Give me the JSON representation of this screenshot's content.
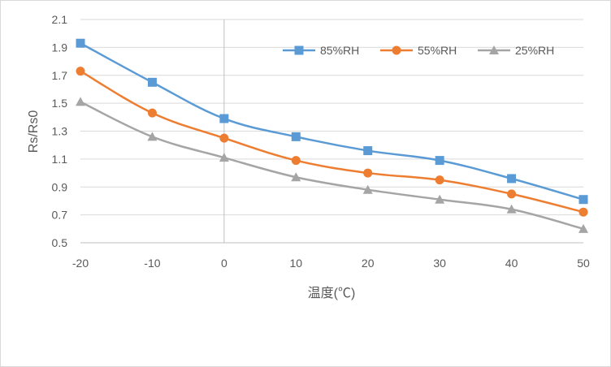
{
  "chart_data": {
    "type": "line",
    "title": "",
    "xlabel": "温度(℃)",
    "ylabel": "Rs/Rs0",
    "x": [
      -20,
      -10,
      0,
      10,
      20,
      30,
      40,
      50
    ],
    "x_ticks": [
      "-20",
      "-10",
      "0",
      "10",
      "20",
      "30",
      "40",
      "50"
    ],
    "y_ticks": [
      "0.5",
      "0.7",
      "0.9",
      "1.1",
      "1.3",
      "1.5",
      "1.7",
      "1.9",
      "2.1"
    ],
    "ylim": [
      0.5,
      2.1
    ],
    "xlim": [
      -20,
      50
    ],
    "grid": "horizontal",
    "legend_position": "top-right",
    "series": [
      {
        "name": "85%RH",
        "color": "#5b9bd5",
        "marker": "square",
        "values": [
          1.93,
          1.65,
          1.39,
          1.26,
          1.16,
          1.09,
          0.96,
          0.81
        ]
      },
      {
        "name": "55%RH",
        "color": "#ed7d31",
        "marker": "circle",
        "values": [
          1.73,
          1.43,
          1.25,
          1.09,
          1.0,
          0.95,
          0.85,
          0.72
        ]
      },
      {
        "name": "25%RH",
        "color": "#a5a5a5",
        "marker": "triangle",
        "values": [
          1.51,
          1.26,
          1.11,
          0.97,
          0.88,
          0.81,
          0.74,
          0.6
        ]
      }
    ]
  }
}
